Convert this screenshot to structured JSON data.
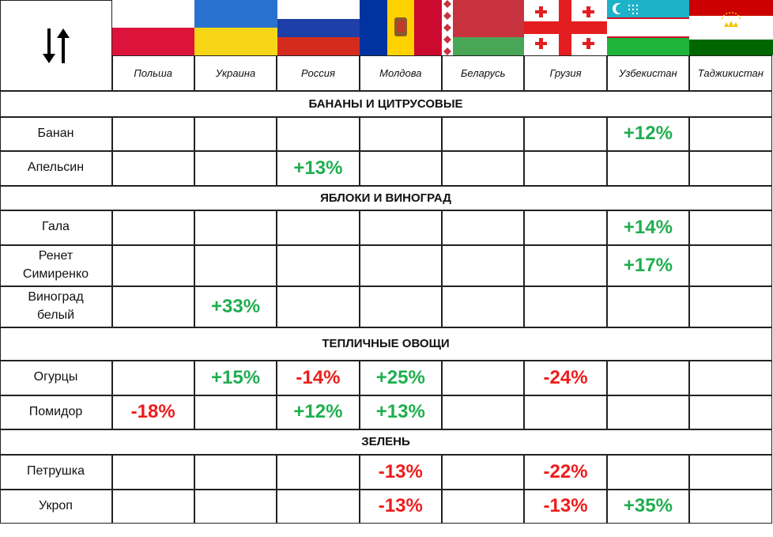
{
  "countries": [
    "Польша",
    "Украина",
    "Россия",
    "Молдова",
    "Беларусь",
    "Грузия",
    "Узбекистан",
    "Таджикистан"
  ],
  "sections": [
    {
      "title": "БАНАНЫ И ЦИТРУСОВЫЕ",
      "rows": [
        {
          "name": "Банан",
          "cells": [
            null,
            null,
            null,
            null,
            null,
            null,
            "+12%",
            null
          ]
        },
        {
          "name": "Апельсин",
          "cells": [
            null,
            null,
            "+13%",
            null,
            null,
            null,
            null,
            null
          ]
        }
      ]
    },
    {
      "title": "ЯБЛОКИ И ВИНОГРАД",
      "rows": [
        {
          "name": "Гала",
          "cells": [
            null,
            null,
            null,
            null,
            null,
            null,
            "+14%",
            null
          ]
        },
        {
          "name": "Ренет Симиренко",
          "cells": [
            null,
            null,
            null,
            null,
            null,
            null,
            "+17%",
            null
          ]
        },
        {
          "name": "Виноград белый",
          "cells": [
            null,
            "+33%",
            null,
            null,
            null,
            null,
            null,
            null
          ]
        }
      ]
    },
    {
      "title": "ТЕПЛИЧНЫЕ ОВОЩИ",
      "rows": [
        {
          "name": "Огурцы",
          "cells": [
            null,
            "+15%",
            "-14%",
            "+25%",
            null,
            "-24%",
            null,
            null
          ]
        },
        {
          "name": "Помидор",
          "cells": [
            "-18%",
            null,
            "+12%",
            "+13%",
            null,
            null,
            null,
            null
          ]
        }
      ]
    },
    {
      "title": "ЗЕЛЕНЬ",
      "rows": [
        {
          "name": "Петрушка",
          "cells": [
            null,
            null,
            null,
            "-13%",
            null,
            "-22%",
            null,
            null
          ]
        },
        {
          "name": "Укроп",
          "cells": [
            null,
            null,
            null,
            "-13%",
            null,
            "-13%",
            "+35%",
            null
          ]
        }
      ]
    }
  ]
}
